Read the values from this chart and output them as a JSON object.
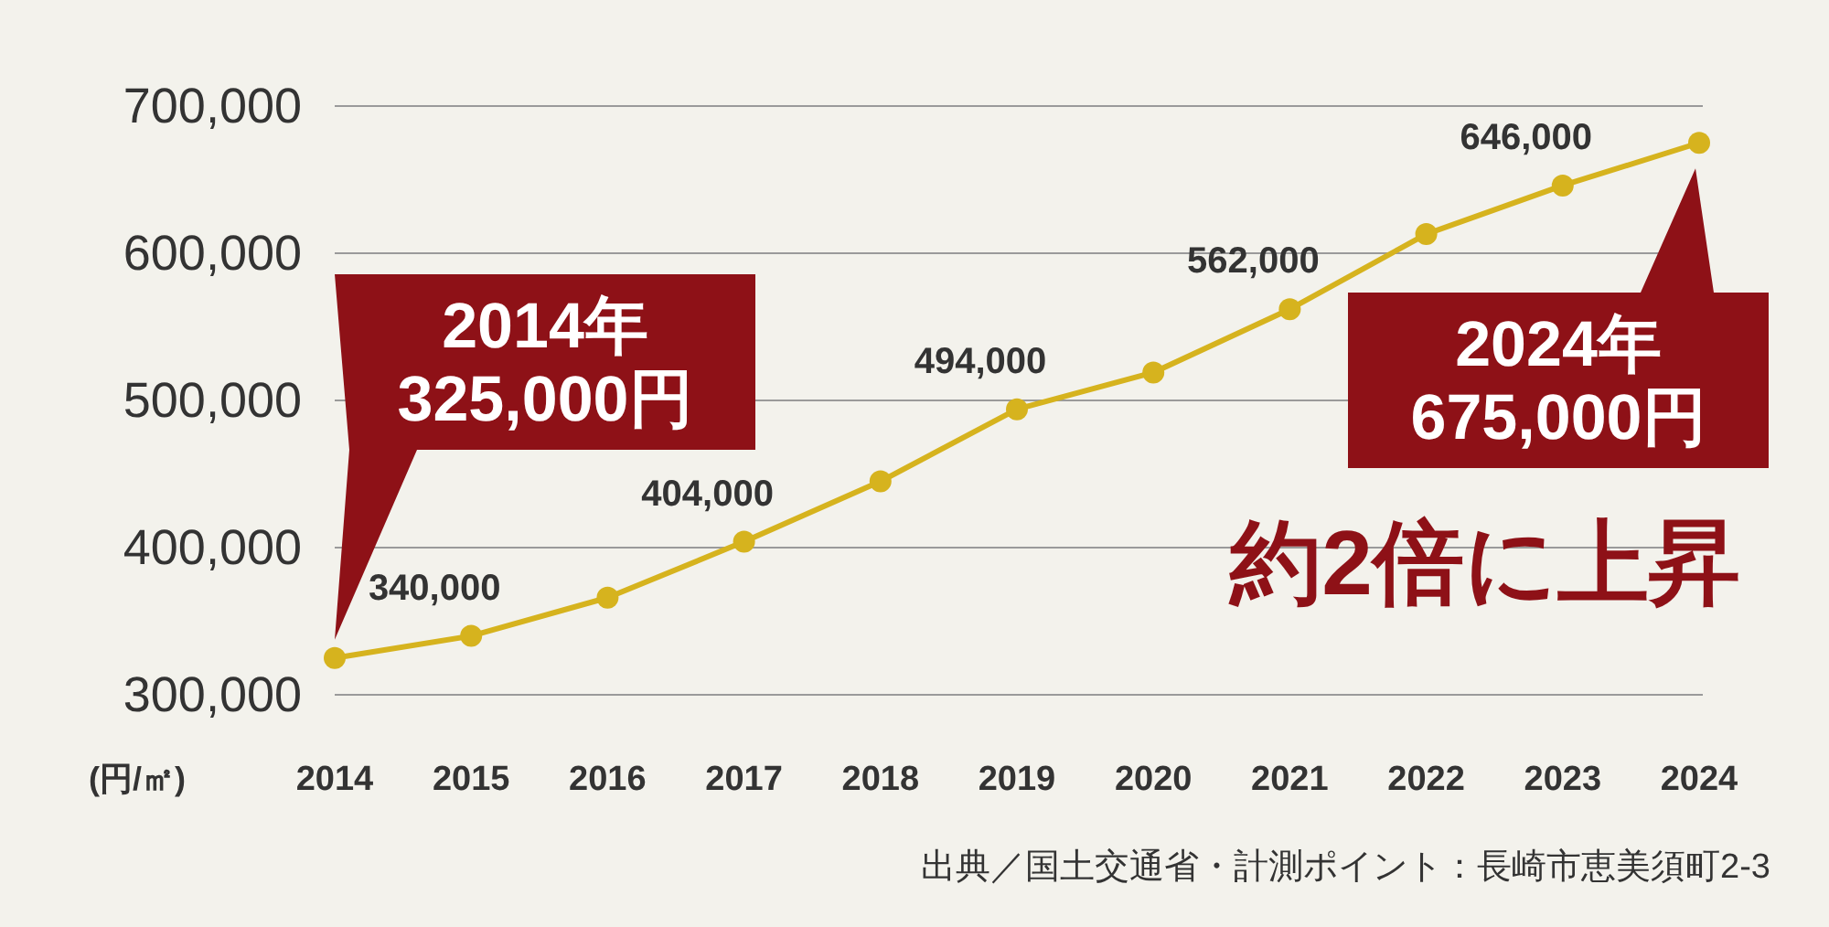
{
  "chart_data": {
    "type": "line",
    "categories": [
      "2014",
      "2015",
      "2016",
      "2017",
      "2018",
      "2019",
      "2020",
      "2021",
      "2022",
      "2023",
      "2024"
    ],
    "series": [
      {
        "color": "#d6b31e",
        "values": [
          325000,
          340000,
          366000,
          404000,
          445000,
          494000,
          519000,
          562000,
          613000,
          646000,
          675000
        ],
        "value_labels": [
          null,
          "340,000",
          null,
          "404,000",
          null,
          "494,000",
          null,
          "562,000",
          null,
          "646,000",
          null
        ]
      }
    ],
    "ylim": [
      300000,
      700000
    ],
    "yticks": [
      {
        "value": 300000,
        "label": "300,000"
      },
      {
        "value": 400000,
        "label": "400,000"
      },
      {
        "value": 500000,
        "label": "500,000"
      },
      {
        "value": 600000,
        "label": "600,000"
      },
      {
        "value": 700000,
        "label": "700,000"
      }
    ],
    "ylabel": "(円/㎡)",
    "grid": "y",
    "marker": "circle",
    "line_style": "solid",
    "annotations": [
      "2014年\n325,000円",
      {
        "text": "2024年\n675,000円",
        "x": "2024",
        "y": 675000
      },
      "約2倍に上昇",
      "出典／国土交通省・計測ポイント：長崎市恵美須町2-3"
    ]
  }
}
